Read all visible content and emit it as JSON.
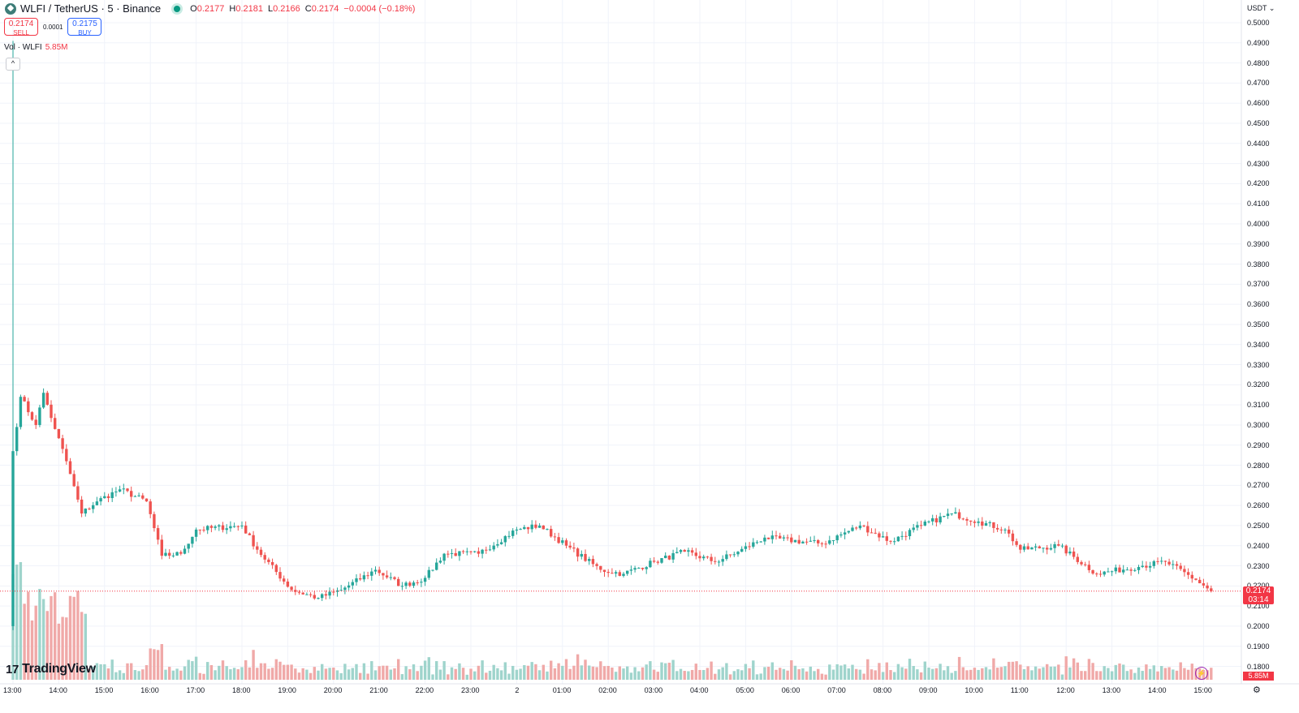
{
  "symbol": {
    "name": "WLFI / TetherUS · 5 · Binance",
    "ohlc": {
      "o_label": "O",
      "o": "0.2177",
      "h_label": "H",
      "h": "0.2181",
      "l_label": "L",
      "l": "0.2166",
      "c_label": "C",
      "c": "0.2174",
      "change": "−0.0004 (−0.18%)"
    },
    "status_color": "#089981"
  },
  "trade": {
    "sell_price": "0.2174",
    "sell_label": "SELL",
    "spread": "0.0001",
    "buy_price": "0.2175",
    "buy_label": "BUY"
  },
  "volume_legend": {
    "label": "Vol · WLFI",
    "value": "5.85M"
  },
  "price_axis": {
    "currency": "USDT",
    "ticks": [
      "0.5000",
      "0.4900",
      "0.4800",
      "0.4700",
      "0.4600",
      "0.4500",
      "0.4400",
      "0.4300",
      "0.4200",
      "0.4100",
      "0.4000",
      "0.3900",
      "0.3800",
      "0.3700",
      "0.3600",
      "0.3500",
      "0.3400",
      "0.3300",
      "0.3200",
      "0.3100",
      "0.3000",
      "0.2900",
      "0.2800",
      "0.2700",
      "0.2600",
      "0.2500",
      "0.2400",
      "0.2300",
      "0.2200",
      "0.2100",
      "0.2000",
      "0.1900",
      "0.1800"
    ],
    "last_price": "0.2174",
    "countdown": "03:14",
    "volume_tag": "5.85M"
  },
  "time_axis": {
    "labels": [
      "13:00",
      "14:00",
      "15:00",
      "16:00",
      "17:00",
      "18:00",
      "19:00",
      "20:00",
      "21:00",
      "22:00",
      "23:00",
      "2",
      "01:00",
      "02:00",
      "03:00",
      "04:00",
      "05:00",
      "06:00",
      "07:00",
      "08:00",
      "09:00",
      "10:00",
      "11:00",
      "12:00",
      "13:00",
      "14:00",
      "15:00"
    ]
  },
  "branding": {
    "logo_text": "TradingView",
    "logo_mark": "17"
  },
  "colors": {
    "up": "#26a69a",
    "down": "#ef5350",
    "up_vol": "#9fd4cc",
    "down_vol": "#f0a9a8",
    "accent_red": "#f23645"
  },
  "chart_data": {
    "type": "candlestick",
    "interval": "5",
    "ylim": [
      0.18,
      0.5
    ],
    "anchors": [
      [
        0,
        0.287
      ],
      [
        2,
        0.314
      ],
      [
        6,
        0.3
      ],
      [
        8,
        0.316
      ],
      [
        11,
        0.298
      ],
      [
        14,
        0.282
      ],
      [
        18,
        0.256
      ],
      [
        22,
        0.262
      ],
      [
        28,
        0.268
      ],
      [
        35,
        0.262
      ],
      [
        39,
        0.235
      ],
      [
        44,
        0.236
      ],
      [
        48,
        0.248
      ],
      [
        60,
        0.25
      ],
      [
        64,
        0.238
      ],
      [
        73,
        0.218
      ],
      [
        80,
        0.214
      ],
      [
        86,
        0.218
      ],
      [
        95,
        0.228
      ],
      [
        102,
        0.22
      ],
      [
        108,
        0.224
      ],
      [
        113,
        0.236
      ],
      [
        122,
        0.236
      ],
      [
        132,
        0.248
      ],
      [
        138,
        0.25
      ],
      [
        145,
        0.24
      ],
      [
        154,
        0.228
      ],
      [
        160,
        0.226
      ],
      [
        168,
        0.232
      ],
      [
        176,
        0.237
      ],
      [
        184,
        0.232
      ],
      [
        190,
        0.237
      ],
      [
        197,
        0.244
      ],
      [
        212,
        0.241
      ],
      [
        222,
        0.25
      ],
      [
        230,
        0.242
      ],
      [
        238,
        0.25
      ],
      [
        246,
        0.256
      ],
      [
        253,
        0.252
      ],
      [
        260,
        0.248
      ],
      [
        264,
        0.238
      ],
      [
        274,
        0.24
      ],
      [
        284,
        0.226
      ],
      [
        296,
        0.23
      ],
      [
        302,
        0.232
      ],
      [
        310,
        0.223
      ],
      [
        314,
        0.2174
      ]
    ],
    "initial_wick_high": 0.491,
    "last_close": 0.2174
  }
}
